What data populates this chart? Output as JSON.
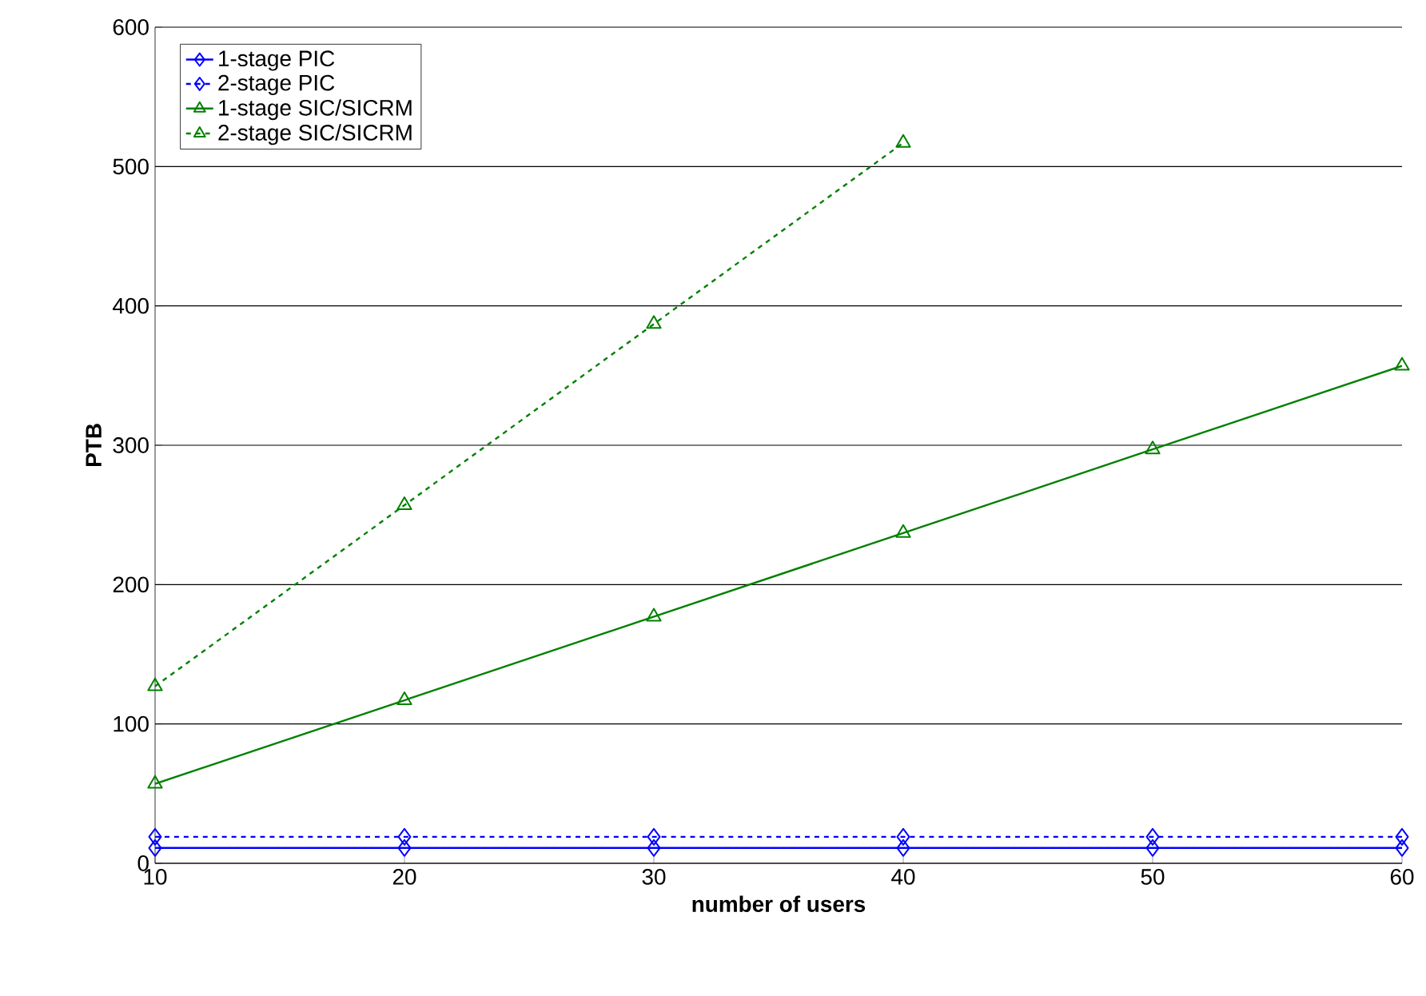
{
  "chart_data": {
    "type": "line",
    "xlabel": "number of users",
    "ylabel": "PTB",
    "x": [
      10,
      20,
      30,
      40,
      50,
      60
    ],
    "xlim": [
      10,
      60
    ],
    "ylim": [
      0,
      600
    ],
    "xticks": [
      10,
      20,
      30,
      40,
      50,
      60
    ],
    "yticks": [
      0,
      100,
      200,
      300,
      400,
      500,
      600
    ],
    "grid": "y",
    "legend": "top left",
    "series": [
      {
        "name": "1-stage PIC",
        "color": "#0000ff",
        "marker": "diamond",
        "line_style": "solid",
        "values": [
          11,
          11,
          11,
          11,
          11,
          11
        ]
      },
      {
        "name": "2-stage PIC",
        "color": "#0000ff",
        "marker": "diamond",
        "line_style": "dotted",
        "values": [
          19,
          19,
          19,
          19,
          19,
          19
        ]
      },
      {
        "name": "1-stage SIC/SICRM",
        "color": "#008000",
        "marker": "triangle",
        "line_style": "solid",
        "values": [
          57,
          117,
          177,
          237,
          297,
          357
        ]
      },
      {
        "name": "2-stage SIC/SICRM",
        "color": "#008000",
        "marker": "triangle",
        "line_style": "dotted",
        "values": [
          127,
          257,
          387,
          517,
          null,
          null
        ]
      }
    ]
  }
}
